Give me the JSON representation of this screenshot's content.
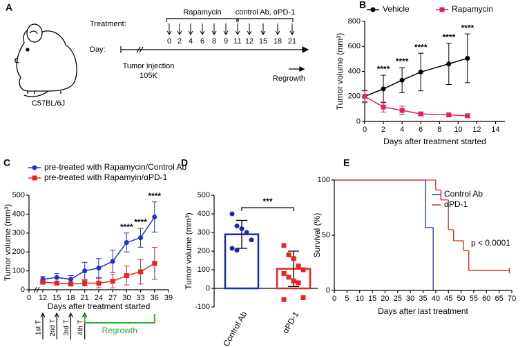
{
  "panel_a": {
    "panel": "A",
    "treatment_label": "Treatment:",
    "day_label": "Day:",
    "drug1": "Rapamycin",
    "drug2": "control Ab, αPD-1",
    "days": [
      0,
      2,
      4,
      6,
      8,
      9,
      11,
      12,
      15,
      18,
      21
    ],
    "injection": "Tumor injection",
    "cells": "105K",
    "regrowth": "Regrowth",
    "strain": "C57BL/6J"
  },
  "chart_data": [
    {
      "type": "line",
      "panel": "B",
      "x": [
        0,
        2,
        4,
        6,
        9,
        11
      ],
      "series": [
        {
          "name": "Vehicle",
          "color": "#000000",
          "marker": "circle",
          "values": [
            200,
            260,
            330,
            395,
            460,
            505
          ],
          "errors": [
            45,
            110,
            100,
            150,
            165,
            195
          ]
        },
        {
          "name": "Rapamycin",
          "color": "#d6246f",
          "marker": "square",
          "values": [
            200,
            115,
            88,
            60,
            52,
            45
          ],
          "errors": [
            50,
            40,
            35,
            15,
            15,
            15
          ]
        }
      ],
      "xlim": [
        0,
        15
      ],
      "xticks": [
        0,
        2,
        4,
        6,
        8,
        10,
        12,
        14
      ],
      "ylim": [
        0,
        800
      ],
      "yticks": [
        0,
        200,
        400,
        600,
        800
      ],
      "xlabel": "Days after treatment started",
      "ylabel": "Tumor volume (mm³)",
      "legend": "top",
      "annotations": [
        {
          "text": "****",
          "x": 2
        },
        {
          "text": "****",
          "x": 4
        },
        {
          "text": "****",
          "x": 6
        },
        {
          "text": "****",
          "x": 9
        },
        {
          "text": "****",
          "x": 11
        }
      ]
    },
    {
      "type": "line",
      "panel": "C",
      "x": [
        12,
        15,
        18,
        21,
        24,
        27,
        30,
        33,
        36
      ],
      "series": [
        {
          "name": "pre-treated with Rapamycin/Control Ab",
          "color": "#1c2fd8",
          "marker": "circle",
          "values": [
            55,
            65,
            55,
            100,
            115,
            150,
            250,
            275,
            385
          ],
          "errors": [
            15,
            20,
            20,
            45,
            50,
            60,
            50,
            50,
            80
          ]
        },
        {
          "name": "pre-treated with Rapamyin/αPD-1",
          "color": "#e8251f",
          "marker": "square",
          "values": [
            40,
            35,
            30,
            35,
            35,
            45,
            75,
            95,
            140
          ],
          "errors": [
            10,
            10,
            10,
            15,
            25,
            35,
            50,
            65,
            85
          ]
        }
      ],
      "xlim": [
        0,
        39
      ],
      "x_break": [
        0,
        12
      ],
      "xticks": [
        0,
        12,
        15,
        18,
        21,
        24,
        27,
        30,
        33,
        36,
        39
      ],
      "ylim": [
        0,
        500
      ],
      "yticks": [
        0,
        100,
        200,
        300,
        400,
        500
      ],
      "xlabel": "Days after treatment started",
      "ylabel": "Tumor volume (mm³)",
      "legend": "top-left",
      "annotations": [
        {
          "text": "****",
          "x": 30
        },
        {
          "text": "****",
          "x": 33
        },
        {
          "text": "****",
          "x": 36
        }
      ],
      "treatments": [
        {
          "label": "1st T",
          "x": 12
        },
        {
          "label": "2nd T",
          "x": 15
        },
        {
          "label": "3rd T",
          "x": 18
        },
        {
          "label": "4th T",
          "x": 21
        }
      ],
      "phase": {
        "label": "Regrowth",
        "x": [
          21,
          36
        ],
        "color": "#2db52d"
      }
    },
    {
      "type": "bar_scatter",
      "panel": "D",
      "categories": [
        "Control Ab",
        "αPD-1"
      ],
      "values": [
        290,
        105
      ],
      "errors": [
        75,
        95
      ],
      "points": [
        [
          400,
          335,
          320,
          300,
          260,
          215,
          205
        ],
        [
          230,
          180,
          160,
          120,
          100,
          80,
          60,
          40,
          30,
          -50,
          -60
        ]
      ],
      "colors": [
        "#1a2aa8",
        "#e8251f"
      ],
      "markers": [
        "circle",
        "square"
      ],
      "ylim": [
        -100,
        500
      ],
      "yticks": [
        -100,
        0,
        100,
        200,
        300,
        400,
        500
      ],
      "ylabel": "Tumor volume (mm³)",
      "annotation": "***"
    },
    {
      "type": "step",
      "panel": "E",
      "series": [
        {
          "name": "Control Ab",
          "color": "#1c2fd8",
          "x": [
            0,
            36,
            39
          ],
          "values": [
            100,
            57,
            0
          ]
        },
        {
          "name": "αPD-1",
          "color": "#e8251f",
          "x": [
            0,
            40,
            42,
            45,
            47,
            51,
            53,
            69
          ],
          "values": [
            100,
            91,
            82,
            55,
            45,
            36,
            18,
            18
          ]
        }
      ],
      "xlim": [
        0,
        70
      ],
      "xticks": [
        0,
        5,
        10,
        15,
        20,
        25,
        30,
        35,
        40,
        45,
        50,
        55,
        60,
        65,
        70
      ],
      "ylim": [
        0,
        100
      ],
      "yticks": [
        0,
        50,
        100
      ],
      "xlabel": "Days after last treatment",
      "ylabel": "Survival (%)",
      "legend": "top-right",
      "annotation": "p < 0.0001"
    }
  ]
}
